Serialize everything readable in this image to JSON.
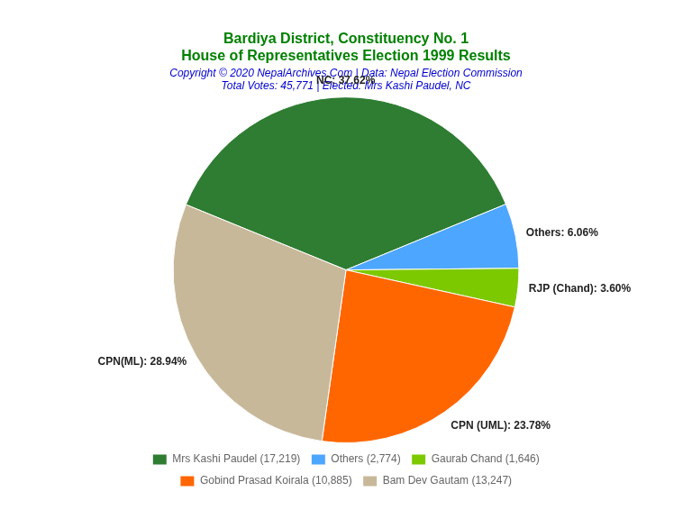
{
  "chart_data": {
    "type": "pie",
    "title": [
      "Bardiya District, Constituency No. 1",
      "House of Representatives Election 1999 Results"
    ],
    "subtitle": [
      "Copyright © 2020 NepalArchives.Com | Data: Nepal Election Commission",
      "Total Votes: 45,771 | Elected: Mrs Kashi Paudel, NC"
    ],
    "categories": [
      "Mrs Kashi Paudel (17,219)",
      "Others (2,774)",
      "Gaurab Chand (1,646)",
      "Gobind Prasad Koirala (10,885)",
      "Bam Dev Gautam (13,247)"
    ],
    "values": [
      37.62,
      6.06,
      3.6,
      23.78,
      28.94
    ],
    "value_labels": [
      "NC: 37.62%",
      "Others: 6.06%",
      "RJP (Chand): 3.60%",
      "CPN (UML): 23.78%",
      "CPN(ML): 28.94%"
    ],
    "colors": [
      "#2e7d32",
      "#4da6ff",
      "#7dc900",
      "#ff6600",
      "#c8b89a"
    ],
    "data_labels": true,
    "legend": "bottom"
  }
}
